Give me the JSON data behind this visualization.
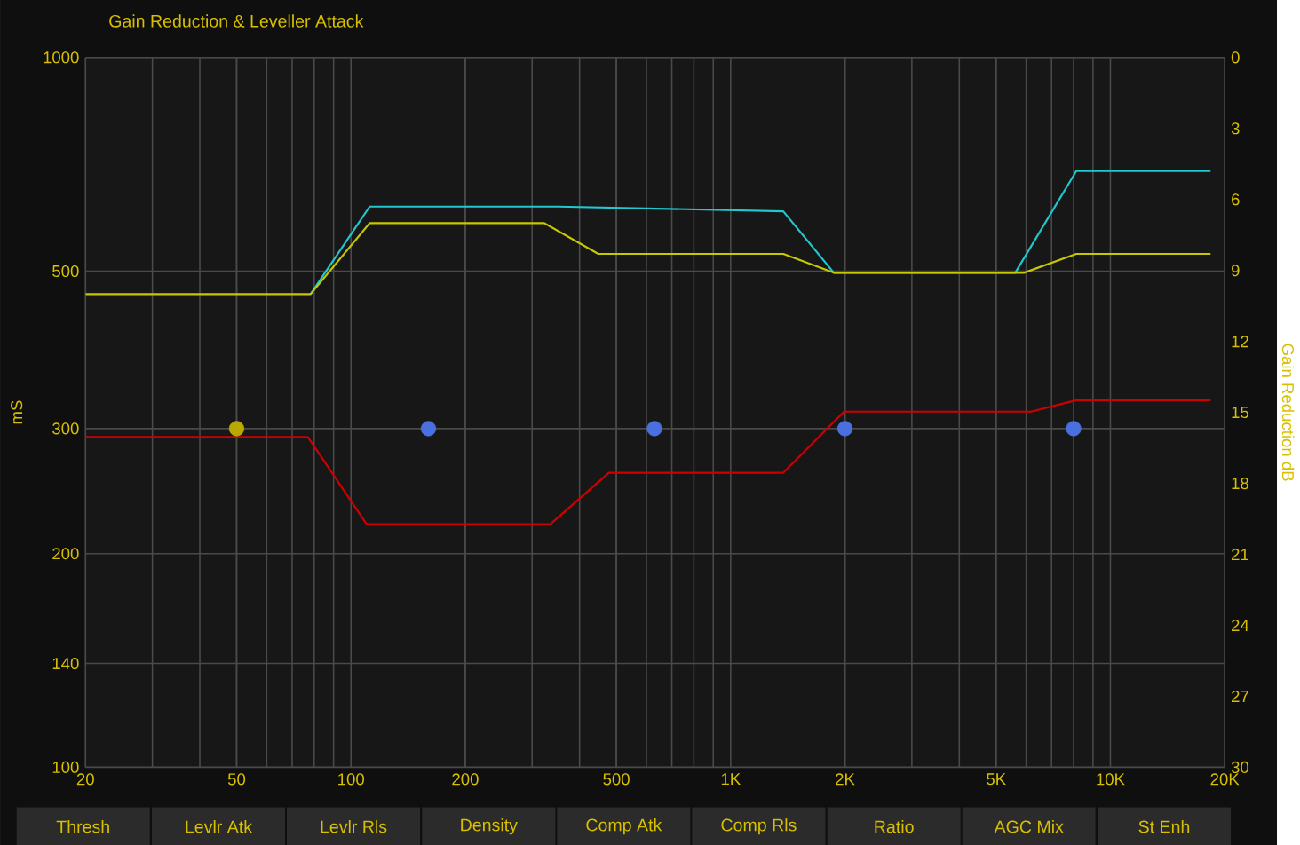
{
  "chart_data": {
    "type": "line",
    "title": "Gain Reduction & Leveller Attack",
    "ylabel": "mS",
    "y2label": "Gain Reduction dB",
    "log": "xy",
    "grid": true,
    "xlim": [
      20,
      20000
    ],
    "xticks": [
      20,
      50,
      100,
      200,
      500,
      {
        "value": 1000,
        "label": "1K"
      },
      {
        "value": 2000,
        "label": "2K"
      },
      {
        "value": 5000,
        "label": "5K"
      },
      {
        "value": 10000,
        "label": "10K"
      },
      {
        "value": 20000,
        "label": "20K"
      }
    ],
    "ylim": [
      100,
      1000
    ],
    "yticks": [
      100,
      140,
      200,
      300,
      500,
      1000
    ],
    "y2lim": [
      30,
      0
    ],
    "y2ticks": [
      0,
      3,
      6,
      9,
      12,
      15,
      18,
      21,
      24,
      27,
      30
    ],
    "series": [
      {
        "color": "#d00000",
        "marker": "none",
        "x": [
          20,
          77,
          110,
          335,
          478,
          1376,
          1990,
          6180,
          8130,
          18360
        ],
        "values": [
          292,
          292,
          220,
          220,
          260,
          260,
          317,
          317,
          329,
          329
        ]
      },
      {
        "type": "scatter",
        "color": "#4a70e0",
        "colors": [
          "#b8a800",
          "#4a70e0",
          "#4a70e0",
          "#4a70e0",
          "#4a70e0"
        ],
        "marker": "circle",
        "x": [
          50,
          160,
          630,
          2000,
          8000
        ],
        "values": [
          300,
          300,
          300,
          300,
          300
        ]
      },
      {
        "axis": "y2",
        "color": "#20c8d0",
        "marker": "none",
        "x": [
          78.3,
          112,
          352,
          1376,
          1870,
          5615,
          8130,
          18360
        ],
        "values": [
          10,
          6.3,
          6.3,
          6.5,
          9.1,
          9.1,
          4.8,
          4.8
        ]
      },
      {
        "axis": "y2",
        "color": "#c8c800",
        "marker": "none",
        "x": [
          20,
          78.3,
          112,
          323,
          448,
          1376,
          1870,
          5920,
          8130,
          18360
        ],
        "values": [
          10,
          10,
          7,
          7,
          8.3,
          8.3,
          9.1,
          9.1,
          8.3,
          8.3
        ]
      }
    ],
    "annotations": [
      "Thresh",
      "Levlr Atk",
      "Levlr Rls",
      "Density",
      "Comp Atk",
      "Comp Rls",
      "Ratio",
      "AGC Mix",
      "St Enh"
    ]
  }
}
